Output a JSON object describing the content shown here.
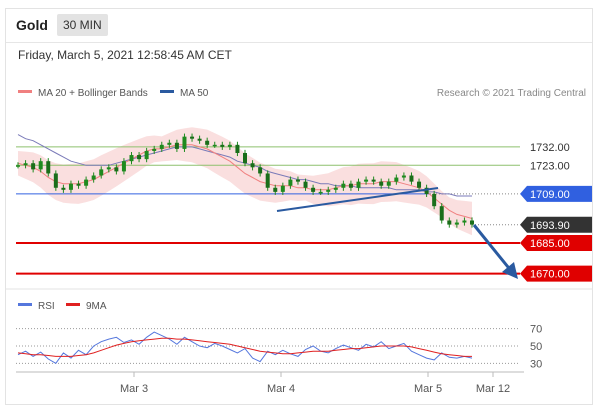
{
  "header": {
    "instrument": "Gold",
    "timeframe": "30 MIN",
    "datetime": "Friday, March 5, 2021 12:58:45 AM CET"
  },
  "legend": {
    "ma20_label": "MA 20 + Bollinger Bands",
    "ma50_label": "MA 50",
    "research": "Research © 2021 Trading Central",
    "rsi_label": "RSI",
    "ma9_label": "9MA"
  },
  "colors": {
    "price": "#1f8a1f",
    "ma20": "#f08080",
    "bollinger_band": "#fadcdc",
    "ma50": "#7a7ab8",
    "pivot": "#3060e0",
    "support": "#e00000",
    "resistance": "#8ec06e",
    "current": "#333333",
    "trend_arrow": "#2a5aa0",
    "rsi": "#5577dd",
    "ma9": "#e02020"
  },
  "chart_data": [
    {
      "type": "line",
      "title": "",
      "x_ticks": [
        "Mar 3",
        "Mar 4",
        "Mar 5",
        "Mar 12"
      ],
      "ylim": [
        1663,
        1751
      ],
      "levels": [
        {
          "value": 1732.0,
          "label": "1732.00",
          "kind": "resistance"
        },
        {
          "value": 1723.0,
          "label": "1723.00",
          "kind": "resistance"
        },
        {
          "value": 1709.0,
          "label": "1709.00",
          "kind": "pivot"
        },
        {
          "value": 1693.9,
          "label": "1693.90",
          "kind": "current"
        },
        {
          "value": 1685.0,
          "label": "1685.00",
          "kind": "support"
        },
        {
          "value": 1670.0,
          "label": "1670.00",
          "kind": "support"
        }
      ],
      "series": [
        {
          "name": "Gold",
          "values": [
            1723,
            1724,
            1721,
            1725,
            1719,
            1712,
            1711,
            1714,
            1713,
            1716,
            1718,
            1721,
            1722,
            1720,
            1725,
            1728,
            1726,
            1730,
            1731,
            1733,
            1734,
            1731,
            1737,
            1736,
            1735,
            1733,
            1733,
            1732,
            1733,
            1729,
            1724,
            1722,
            1719,
            1712,
            1710,
            1713,
            1716,
            1715,
            1712,
            1710,
            1710,
            1711,
            1712,
            1714,
            1712,
            1715,
            1716,
            1715,
            1713,
            1715,
            1717,
            1718,
            1715,
            1712,
            1709,
            1703,
            1696,
            1694,
            1695,
            1696,
            1694
          ]
        },
        {
          "name": "MA 20",
          "values": [
            1724,
            1723,
            1722,
            1720,
            1717,
            1715,
            1714,
            1714,
            1714,
            1715,
            1716,
            1718,
            1720,
            1722,
            1724,
            1726,
            1728,
            1730,
            1731,
            1731,
            1732,
            1733,
            1733,
            1733,
            1732,
            1731,
            1729,
            1727,
            1725,
            1722,
            1719,
            1717,
            1715,
            1714,
            1713,
            1713,
            1713,
            1712,
            1712,
            1711,
            1711,
            1711,
            1712,
            1713,
            1713,
            1714,
            1714,
            1714,
            1715,
            1715,
            1715,
            1714,
            1713,
            1712,
            1710,
            1707,
            1704,
            1701,
            1699,
            1698,
            1697
          ]
        },
        {
          "name": "MA 50",
          "values": [
            1738,
            1736,
            1735,
            1733,
            1731,
            1729,
            1727,
            1725,
            1724,
            1723,
            1723,
            1723,
            1723,
            1724,
            1725,
            1726,
            1727,
            1728,
            1729,
            1730,
            1731,
            1732,
            1732,
            1732,
            1731,
            1730,
            1729,
            1728,
            1727,
            1725,
            1724,
            1723,
            1722,
            1720,
            1719,
            1718,
            1717,
            1716,
            1716,
            1715,
            1714,
            1714,
            1713,
            1713,
            1713,
            1712,
            1712,
            1712,
            1712,
            1712,
            1711,
            1711,
            1711,
            1711,
            1710,
            1710,
            1709,
            1709,
            1708,
            1708,
            1708
          ]
        }
      ]
    },
    {
      "type": "line",
      "title": "",
      "ylim": [
        20,
        80
      ],
      "y_ticks": [
        "70",
        "50",
        "30"
      ],
      "series": [
        {
          "name": "RSI",
          "values": [
            40,
            44,
            38,
            43,
            35,
            30,
            42,
            36,
            45,
            40,
            50,
            55,
            58,
            60,
            54,
            57,
            52,
            60,
            66,
            62,
            58,
            52,
            60,
            55,
            50,
            48,
            53,
            50,
            46,
            42,
            47,
            36,
            32,
            44,
            40,
            45,
            41,
            38,
            46,
            50,
            44,
            42,
            47,
            51,
            48,
            45,
            52,
            49,
            55,
            47,
            50,
            53,
            44,
            40,
            36,
            34,
            42,
            37,
            36,
            38,
            36
          ]
        },
        {
          "name": "9MA",
          "values": [
            42,
            41,
            40,
            40,
            39,
            38,
            38,
            38,
            39,
            40,
            42,
            45,
            48,
            51,
            53,
            55,
            56,
            57,
            58,
            59,
            59,
            58,
            58,
            57,
            56,
            55,
            54,
            53,
            52,
            50,
            48,
            46,
            44,
            43,
            42,
            41,
            41,
            42,
            43,
            44,
            44,
            44,
            45,
            46,
            47,
            47,
            48,
            49,
            50,
            50,
            50,
            50,
            49,
            47,
            45,
            43,
            41,
            40,
            39,
            38,
            38
          ]
        }
      ]
    }
  ]
}
